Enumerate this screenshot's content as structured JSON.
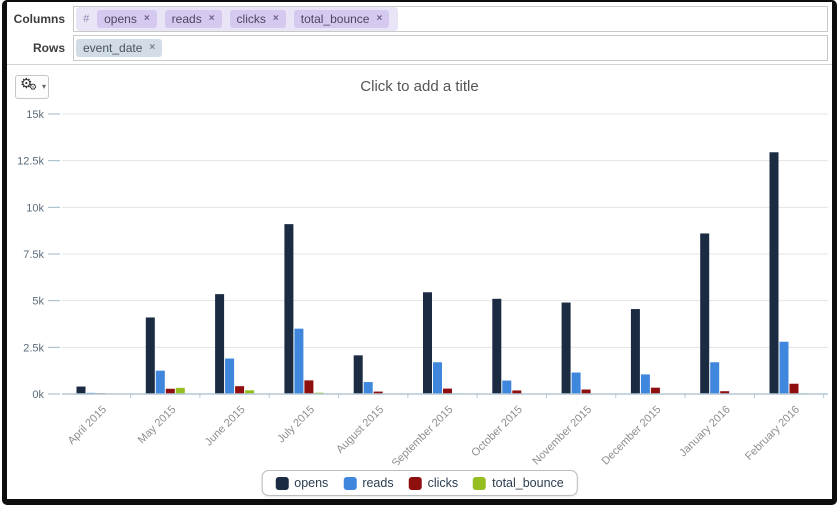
{
  "pivot": {
    "columns_label": "Columns",
    "rows_label": "Rows",
    "columns_prefix": "#",
    "column_tags": [
      "opens",
      "reads",
      "clicks",
      "total_bounce"
    ],
    "row_tags": [
      "event_date"
    ]
  },
  "icons": {
    "remove": "×",
    "gear": "⚙",
    "caret_down": "▾"
  },
  "chart": {
    "title_placeholder": "Click to add a title"
  },
  "colors": {
    "columns_group_bg": "#eae4f7",
    "columns_tag_bg": "#d6c9ef",
    "rows_tag_bg": "#d2dce6",
    "axis_line": "#b3c7d6",
    "gridline": "#e4e4e4"
  },
  "chart_data": {
    "type": "bar",
    "title": "Click to add a title",
    "categories": [
      "April 2015",
      "May 2015",
      "June 2015",
      "July 2015",
      "August 2015",
      "September 2015",
      "October 2015",
      "November 2015",
      "December 2015",
      "January 2016",
      "February 2016"
    ],
    "series": [
      {
        "name": "opens",
        "color": "#1a2b42",
        "values": [
          400,
          4100,
          5350,
          9100,
          2070,
          5450,
          5100,
          4900,
          4550,
          8600,
          12950
        ]
      },
      {
        "name": "reads",
        "color": "#3f87dc",
        "values": [
          60,
          1250,
          1900,
          3500,
          640,
          1700,
          720,
          1150,
          1050,
          1700,
          2800
        ]
      },
      {
        "name": "clicks",
        "color": "#8f0f0f",
        "values": [
          40,
          280,
          420,
          730,
          130,
          290,
          190,
          240,
          340,
          150,
          550
        ]
      },
      {
        "name": "total_bounce",
        "color": "#96be20",
        "values": [
          15,
          330,
          200,
          70,
          25,
          30,
          25,
          25,
          25,
          25,
          35
        ]
      }
    ],
    "y_ticks": [
      "0k",
      "2.5k",
      "5k",
      "7.5k",
      "10k",
      "12.5k",
      "15k"
    ],
    "y_tick_values": [
      0,
      2500,
      5000,
      7500,
      10000,
      12500,
      15000
    ],
    "ylim": [
      0,
      15000
    ],
    "grid": true,
    "legend_position": "bottom",
    "xlabel": "",
    "ylabel": ""
  }
}
